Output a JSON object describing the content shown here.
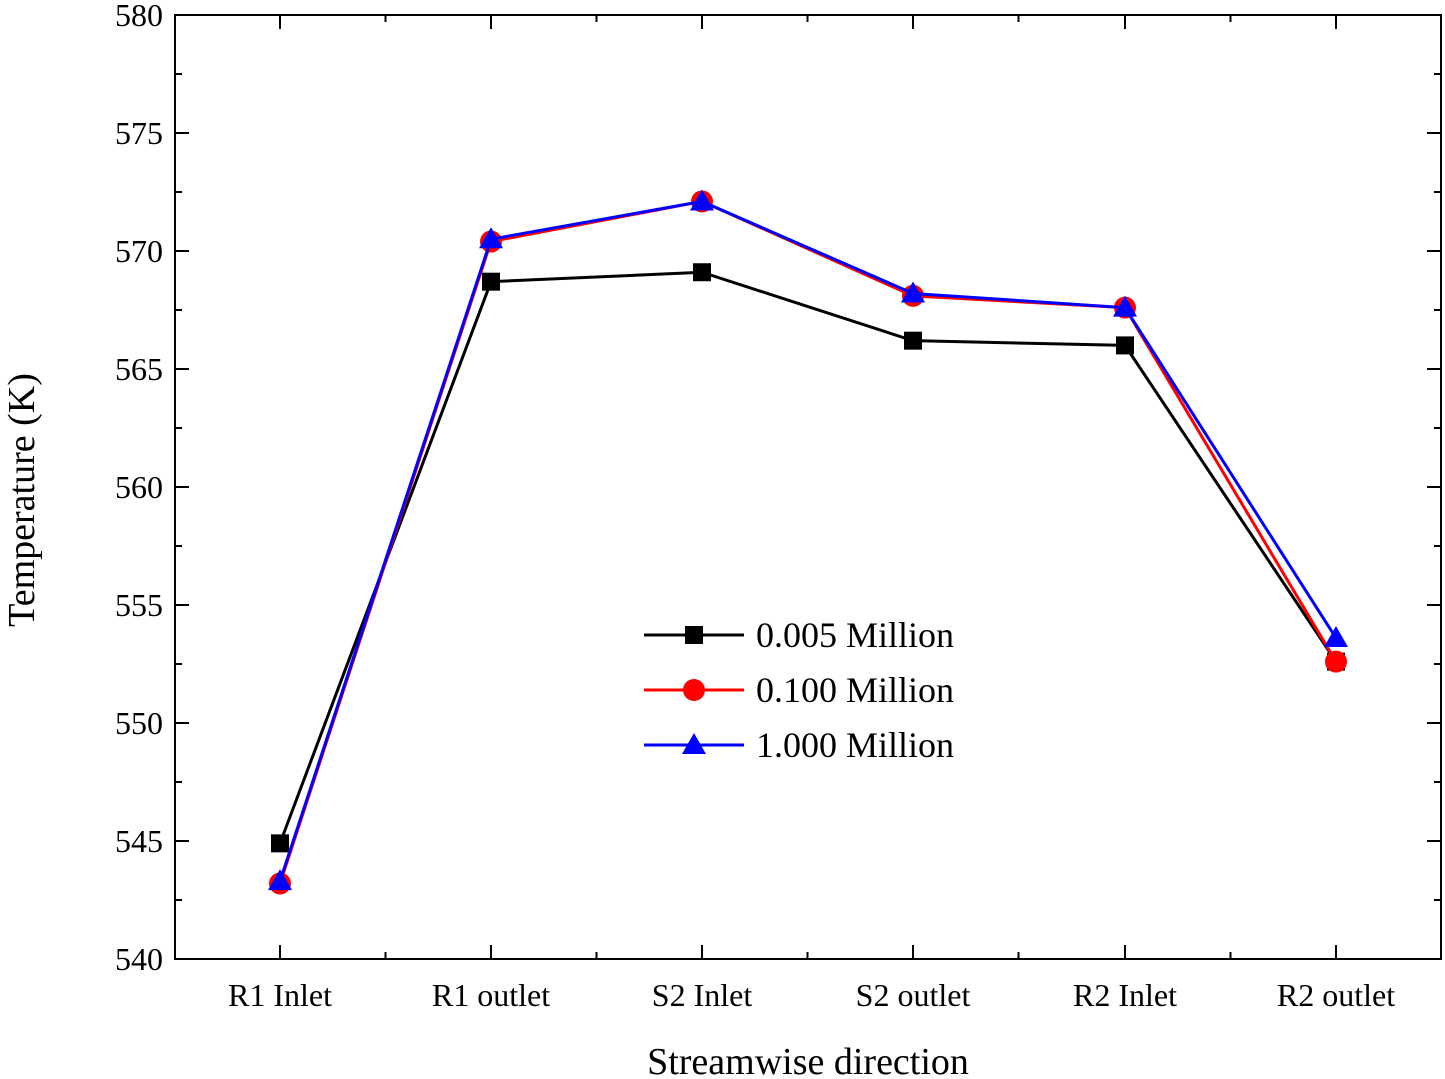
{
  "chart_data": {
    "type": "line",
    "title": "",
    "xlabel": "Streamwise direction",
    "ylabel": "Temperature (K)",
    "categories": [
      "R1 Inlet",
      "R1 outlet",
      "S2 Inlet",
      "S2 outlet",
      "R2 Inlet",
      "R2 outlet"
    ],
    "ylim": [
      540,
      580
    ],
    "yticks": [
      540,
      545,
      550,
      555,
      560,
      565,
      570,
      575,
      580
    ],
    "grid": false,
    "legend_position": "center-right",
    "series": [
      {
        "name": "0.005 Million",
        "color": "#000000",
        "marker": "square",
        "values": [
          544.9,
          568.7,
          569.1,
          566.2,
          566.0,
          552.6
        ]
      },
      {
        "name": "0.100 Million",
        "color": "#ff0000",
        "marker": "circle",
        "values": [
          543.2,
          570.4,
          572.1,
          568.1,
          567.6,
          552.6
        ]
      },
      {
        "name": "1.000 Million",
        "color": "#0000ff",
        "marker": "triangle",
        "values": [
          543.3,
          570.5,
          572.1,
          568.2,
          567.6,
          553.6
        ]
      }
    ]
  }
}
